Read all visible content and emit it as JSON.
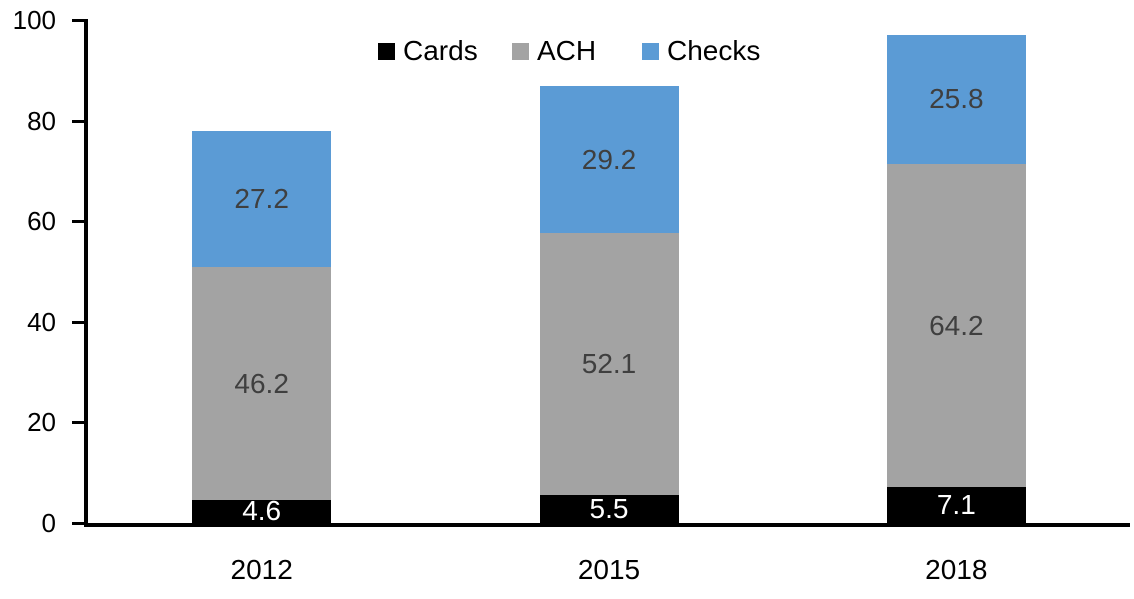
{
  "chart_data": {
    "type": "bar",
    "stacked": true,
    "title": "",
    "xlabel": "",
    "ylabel": "",
    "categories": [
      "2012",
      "2015",
      "2018"
    ],
    "series": [
      {
        "name": "Cards",
        "color": "#000000",
        "label_color": "#FFFFFF",
        "values": [
          4.6,
          5.5,
          7.1
        ]
      },
      {
        "name": "ACH",
        "color": "#A3A3A3",
        "label_color": "#3F3F3F",
        "values": [
          46.2,
          52.1,
          64.2
        ]
      },
      {
        "name": "Checks",
        "color": "#5B9BD5",
        "label_color": "#3F3F3F",
        "values": [
          27.2,
          29.2,
          25.8
        ]
      }
    ],
    "totals": [
      78.0,
      86.8,
      97.1
    ],
    "ylim": [
      0,
      100
    ],
    "y_ticks": [
      0,
      20,
      40,
      60,
      80,
      100
    ],
    "value_decimals": 1,
    "grid": false,
    "legend_position": "top-center",
    "background": "#FFFFFF",
    "axis_color": "#000000"
  }
}
